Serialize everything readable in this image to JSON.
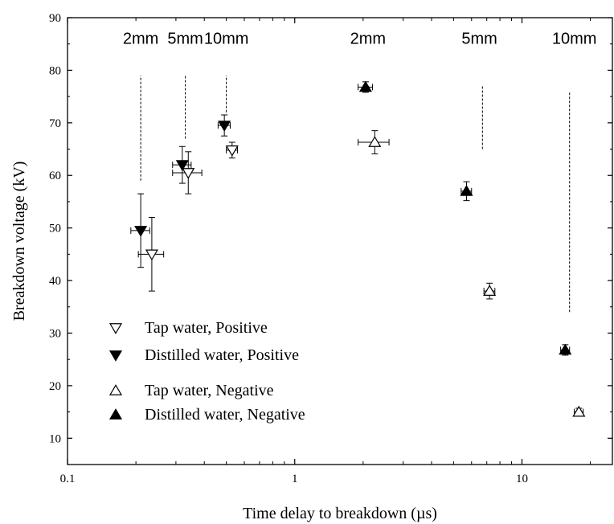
{
  "chart_data": {
    "type": "scatter",
    "xlabel": "Time delay to breakdown (µs)",
    "ylabel": "Breakdown voltage (kV)",
    "xscale": "log",
    "xlim": [
      0.1,
      25
    ],
    "ylim": [
      5,
      90
    ],
    "x_ticks": [
      "0.1",
      "1",
      "10"
    ],
    "y_ticks": [
      "10",
      "20",
      "30",
      "40",
      "50",
      "60",
      "70",
      "80",
      "90"
    ],
    "grid": false,
    "legend_placement": "lower-left",
    "gap_labels": [
      {
        "text": "2mm",
        "x": 0.21,
        "y": 85
      },
      {
        "text": "5mm",
        "x": 0.33,
        "y": 85
      },
      {
        "text": "10mm",
        "x": 0.5,
        "y": 85
      },
      {
        "text": "2mm",
        "x": 2.1,
        "y": 85
      },
      {
        "text": "5mm",
        "x": 6.5,
        "y": 85
      },
      {
        "text": "10mm",
        "x": 17,
        "y": 85
      }
    ],
    "dashed_lines": [
      {
        "x": 0.21,
        "y1": 59,
        "y2": 79
      },
      {
        "x": 0.33,
        "y1": 67,
        "y2": 79
      },
      {
        "x": 0.5,
        "y1": 72,
        "y2": 79
      },
      {
        "x": 6.7,
        "y1": 65,
        "y2": 77
      },
      {
        "x": 16.2,
        "y1": 34,
        "y2": 76
      }
    ],
    "series": [
      {
        "name": "Tap water, Positive",
        "marker": "triangle-down-open",
        "points": [
          {
            "x": 0.235,
            "y": 45.0,
            "xerr": 0.03,
            "yerr": 7
          },
          {
            "x": 0.34,
            "y": 60.5,
            "xerr": 0.05,
            "yerr": 4
          },
          {
            "x": 0.53,
            "y": 64.8,
            "xerr": 0.03,
            "yerr": 1.5
          }
        ]
      },
      {
        "name": "Distilled water, Positive",
        "marker": "triangle-down-filled",
        "points": [
          {
            "x": 0.21,
            "y": 49.5,
            "xerr": 0.02,
            "yerr": 7
          },
          {
            "x": 0.32,
            "y": 62.0,
            "xerr": 0.03,
            "yerr": 3.5
          },
          {
            "x": 0.49,
            "y": 69.5,
            "xerr": 0.03,
            "yerr": 2.0
          }
        ]
      },
      {
        "name": "Tap water, Negative",
        "marker": "triangle-up-open",
        "points": [
          {
            "x": 2.25,
            "y": 66.3,
            "xerr": 0.35,
            "yerr": 2.2
          },
          {
            "x": 7.2,
            "y": 38.0,
            "xerr": 0.4,
            "yerr": 1.5
          },
          {
            "x": 17.8,
            "y": 15.0,
            "xerr": 0.8,
            "yerr": 0.7
          }
        ]
      },
      {
        "name": "Distilled water, Negative",
        "marker": "triangle-up-filled",
        "points": [
          {
            "x": 2.05,
            "y": 76.8,
            "xerr": 0.15,
            "yerr": 1.0
          },
          {
            "x": 5.7,
            "y": 57.0,
            "xerr": 0.3,
            "yerr": 1.8
          },
          {
            "x": 15.5,
            "y": 26.8,
            "xerr": 0.7,
            "yerr": 1.0
          }
        ]
      }
    ]
  }
}
